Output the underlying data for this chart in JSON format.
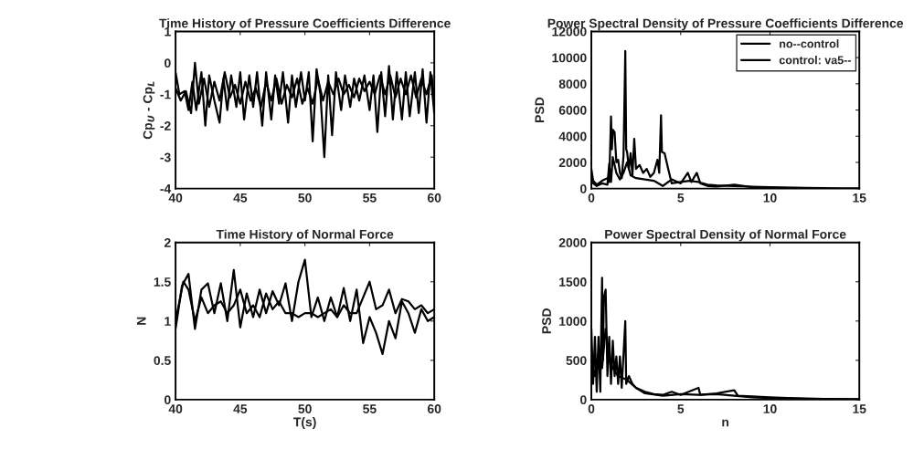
{
  "chart_data": [
    {
      "type": "line",
      "title": "Time History of Pressure Coefficients Difference",
      "ylabel": "Cp$_{U}$ - Cp$_{L}$",
      "xlim": [
        40,
        60
      ],
      "xticks": [
        40,
        45,
        50,
        55,
        60
      ],
      "ylim": [
        -4,
        1
      ],
      "yticks": [
        -4,
        -3,
        -2,
        -1,
        0,
        1
      ],
      "grid": false,
      "legend": false,
      "line_style": "solid",
      "series": [
        {
          "color": "#000000",
          "x": [
            40,
            40.3,
            40.7,
            41.0,
            41.3,
            41.6,
            42.0,
            42.3,
            42.6,
            43.0,
            43.4,
            43.7,
            44.0,
            44.3,
            44.7,
            45.0,
            45.3,
            45.7,
            46.0,
            46.3,
            46.7,
            47.0,
            47.4,
            47.7,
            48.0,
            48.3,
            48.7,
            49.0,
            49.3,
            49.7,
            50.0,
            50.3,
            50.6,
            50.9,
            51.2,
            51.5,
            51.8,
            52.1,
            52.4,
            52.8,
            53.1,
            53.5,
            53.8,
            54.2,
            54.6,
            55.0,
            55.3,
            55.6,
            55.9,
            56.2,
            56.5,
            56.8,
            57.1,
            57.5,
            57.8,
            58.1,
            58.5,
            58.8,
            59.1,
            59.4,
            59.7,
            60.0
          ],
          "values": [
            -0.3,
            -1.0,
            -0.9,
            -1.5,
            -0.6,
            -1.5,
            -0.3,
            -2.0,
            -0.4,
            -1.2,
            -1.9,
            -0.5,
            -1.5,
            -0.4,
            -1.4,
            -0.3,
            -1.8,
            -0.4,
            -1.4,
            -0.3,
            -2.0,
            -0.3,
            -1.8,
            -0.4,
            -1.3,
            -0.3,
            -1.9,
            -0.4,
            -1.4,
            -0.3,
            -1.2,
            -0.3,
            -2.5,
            -0.2,
            -1.0,
            -3.0,
            -0.4,
            -2.3,
            -0.3,
            -1.5,
            -0.4,
            -1.4,
            -0.5,
            -1.2,
            -0.4,
            -1.5,
            -0.4,
            -2.2,
            -0.3,
            -1.7,
            -0.1,
            -1.8,
            -0.3,
            -1.8,
            -0.3,
            -1.7,
            -0.3,
            -1.6,
            -0.2,
            -1.9,
            -0.3,
            -1.6
          ]
        },
        {
          "color": "#000000",
          "x": [
            40,
            40.4,
            40.8,
            41.2,
            41.5,
            41.8,
            42.2,
            42.6,
            43.0,
            43.4,
            43.8,
            44.2,
            44.6,
            45.0,
            45.4,
            45.8,
            46.2,
            46.6,
            47.0,
            47.4,
            47.8,
            48.2,
            48.6,
            49.0,
            49.4,
            49.8,
            50.2,
            50.6,
            51.0,
            51.4,
            51.8,
            52.2,
            52.6,
            53.0,
            53.4,
            53.8,
            54.2,
            54.6,
            55.0,
            55.4,
            55.8,
            56.2,
            56.6,
            57.0,
            57.4,
            57.8,
            58.2,
            58.6,
            59.0,
            59.4,
            59.8,
            60.0
          ],
          "values": [
            -0.8,
            -1.2,
            -0.9,
            -1.6,
            0.0,
            -1.3,
            -0.5,
            -1.4,
            -0.6,
            -1.2,
            -0.3,
            -1.1,
            -0.7,
            -1.3,
            -0.6,
            -1.2,
            -0.8,
            -1.4,
            -0.6,
            -1.2,
            -0.5,
            -1.3,
            -0.7,
            -1.1,
            -0.5,
            -1.3,
            -0.8,
            -1.3,
            -0.5,
            -1.2,
            -0.6,
            -1.0,
            -0.5,
            -1.0,
            -0.7,
            -1.1,
            -0.5,
            -0.9,
            -0.6,
            -1.0,
            -0.4,
            -1.0,
            -0.4,
            -1.1,
            -0.5,
            -1.0,
            -0.4,
            -1.1,
            -0.5,
            -1.0,
            -0.4,
            -1.2
          ]
        }
      ]
    },
    {
      "type": "line",
      "title": "Power Spectral Density of Pressure Coefficients Difference",
      "ylabel": "PSD",
      "xlim": [
        0,
        15
      ],
      "xticks": [
        0,
        5,
        10,
        15
      ],
      "ylim": [
        0,
        12000
      ],
      "yticks": [
        0,
        2000,
        4000,
        6000,
        8000,
        10000,
        12000
      ],
      "grid": false,
      "legend": "top right",
      "line_style": "solid",
      "series": [
        {
          "name": "no--control",
          "color": "#000000",
          "x": [
            0,
            0.1,
            0.3,
            0.6,
            0.9,
            1.0,
            1.1,
            1.15,
            1.2,
            1.3,
            1.4,
            1.5,
            1.6,
            1.7,
            1.8,
            1.9,
            1.95,
            2.0,
            2.1,
            2.2,
            2.3,
            2.4,
            2.5,
            2.7,
            2.9,
            3.1,
            3.3,
            3.5,
            3.7,
            3.8,
            3.9,
            3.95,
            4.1,
            4.3,
            4.5,
            5.0,
            5.5,
            6.0,
            6.5,
            7.0,
            8.0,
            9.0,
            10,
            11,
            12,
            13,
            14,
            15
          ],
          "values": [
            1500,
            600,
            300,
            600,
            800,
            500,
            5500,
            3000,
            4500,
            4300,
            2000,
            2200,
            1200,
            800,
            2500,
            10500,
            3000,
            2800,
            1500,
            2700,
            1000,
            3800,
            1500,
            1800,
            1200,
            1500,
            900,
            1200,
            2200,
            1200,
            5600,
            2800,
            2700,
            1500,
            400,
            500,
            600,
            500,
            300,
            250,
            200,
            150,
            100,
            80,
            60,
            30,
            10,
            5
          ]
        },
        {
          "name": "control: va5--",
          "color": "#000000",
          "x": [
            0,
            0.3,
            0.6,
            0.9,
            1.0,
            1.1,
            1.2,
            1.4,
            1.6,
            1.8,
            2.0,
            2.2,
            2.5,
            3.0,
            3.5,
            4.0,
            4.5,
            5.0,
            5.4,
            5.6,
            5.9,
            6.1,
            6.5,
            7.0,
            8.0,
            9.0,
            10,
            11,
            12,
            13,
            15
          ],
          "values": [
            500,
            200,
            400,
            300,
            1900,
            500,
            2400,
            1200,
            700,
            1200,
            2000,
            1000,
            800,
            700,
            600,
            200,
            700,
            400,
            1200,
            500,
            1200,
            400,
            200,
            150,
            300,
            100,
            80,
            50,
            30,
            10,
            5
          ]
        }
      ]
    },
    {
      "type": "line",
      "title": "Time History of Normal Force",
      "xlabel": "T(s)",
      "ylabel": "N",
      "xlim": [
        40,
        60
      ],
      "xticks": [
        40,
        45,
        50,
        55,
        60
      ],
      "ylim": [
        0,
        2
      ],
      "yticks": [
        0,
        0.5,
        1,
        1.5,
        2
      ],
      "grid": false,
      "legend": false,
      "line_style": "solid",
      "series": [
        {
          "color": "#000000",
          "x": [
            40,
            40.5,
            41.0,
            41.5,
            42.0,
            42.5,
            43.0,
            43.5,
            44.0,
            44.5,
            45.0,
            45.5,
            46.0,
            46.5,
            47.0,
            47.5,
            48.0,
            48.5,
            49.0,
            49.5,
            50.0,
            50.5,
            51.0,
            51.5,
            52.0,
            52.5,
            53.0,
            53.5,
            54.0,
            54.5,
            55.0,
            55.5,
            56.0,
            56.5,
            57.0,
            57.5,
            58.0,
            58.5,
            59.0,
            59.5,
            60.0
          ],
          "values": [
            0.9,
            1.45,
            1.6,
            0.9,
            1.4,
            1.48,
            1.1,
            1.48,
            1.0,
            1.65,
            0.92,
            1.35,
            1.05,
            1.4,
            1.1,
            1.38,
            1.2,
            1.48,
            1.0,
            1.5,
            1.78,
            1.05,
            1.3,
            1.0,
            1.3,
            1.05,
            1.42,
            1.0,
            1.4,
            0.72,
            1.05,
            0.85,
            0.58,
            1.0,
            0.78,
            1.25,
            1.1,
            0.85,
            1.15,
            1.0,
            1.05
          ]
        },
        {
          "color": "#000000",
          "x": [
            40,
            40.6,
            41.0,
            41.5,
            42.0,
            42.5,
            43.0,
            43.5,
            44.0,
            44.5,
            45.0,
            45.5,
            46.0,
            46.5,
            47.0,
            47.5,
            48.0,
            48.5,
            49.0,
            49.5,
            50.0,
            50.5,
            51.0,
            51.5,
            52.0,
            52.5,
            53.0,
            53.5,
            54.0,
            54.5,
            55.0,
            55.5,
            56.0,
            56.5,
            57.0,
            57.5,
            58.0,
            58.5,
            59.0,
            59.5,
            60.0
          ],
          "values": [
            1.0,
            1.5,
            1.4,
            1.0,
            1.3,
            1.1,
            1.2,
            1.25,
            1.1,
            1.2,
            1.4,
            1.1,
            1.2,
            1.05,
            1.35,
            1.15,
            1.25,
            1.1,
            1.1,
            1.05,
            1.1,
            1.1,
            1.05,
            1.1,
            1.15,
            1.05,
            1.2,
            1.1,
            1.1,
            1.3,
            1.5,
            1.15,
            1.2,
            1.4,
            1.1,
            1.28,
            1.25,
            1.15,
            1.2,
            1.1,
            1.15
          ]
        }
      ]
    },
    {
      "type": "line",
      "title": "Power Spectral Density of Normal Force",
      "xlabel": "n",
      "ylabel": "PSD",
      "xlim": [
        0,
        15
      ],
      "xticks": [
        0,
        5,
        10,
        15
      ],
      "ylim": [
        0,
        2000
      ],
      "yticks": [
        0,
        500,
        1000,
        1500,
        2000
      ],
      "grid": false,
      "legend": false,
      "line_style": "solid",
      "series": [
        {
          "color": "#000000",
          "x": [
            0,
            0.1,
            0.2,
            0.3,
            0.4,
            0.5,
            0.6,
            0.65,
            0.7,
            0.8,
            0.9,
            1.0,
            1.1,
            1.2,
            1.3,
            1.4,
            1.5,
            1.6,
            1.7,
            1.9,
            1.95,
            2.1,
            2.3,
            2.5,
            3.0,
            3.5,
            4.0,
            4.5,
            5.0,
            6.0,
            6.1,
            7.0,
            8.0,
            8.2,
            9.0,
            10,
            11,
            12,
            13,
            15
          ],
          "values": [
            900,
            200,
            800,
            100,
            800,
            100,
            1550,
            500,
            1300,
            1400,
            300,
            800,
            200,
            750,
            300,
            550,
            200,
            550,
            150,
            1000,
            200,
            300,
            200,
            150,
            100,
            70,
            60,
            100,
            60,
            150,
            60,
            80,
            120,
            50,
            40,
            30,
            20,
            15,
            10,
            5
          ]
        },
        {
          "color": "#000000",
          "x": [
            0,
            0.2,
            0.4,
            0.6,
            0.8,
            1.0,
            1.2,
            1.5,
            2.0,
            2.5,
            3.0,
            4.0,
            5.0,
            6.0,
            7.0,
            8.0,
            9.0,
            10,
            12,
            15
          ],
          "values": [
            500,
            300,
            600,
            400,
            900,
            500,
            400,
            300,
            250,
            150,
            80,
            50,
            70,
            60,
            70,
            50,
            30,
            20,
            10,
            3
          ]
        }
      ]
    }
  ]
}
